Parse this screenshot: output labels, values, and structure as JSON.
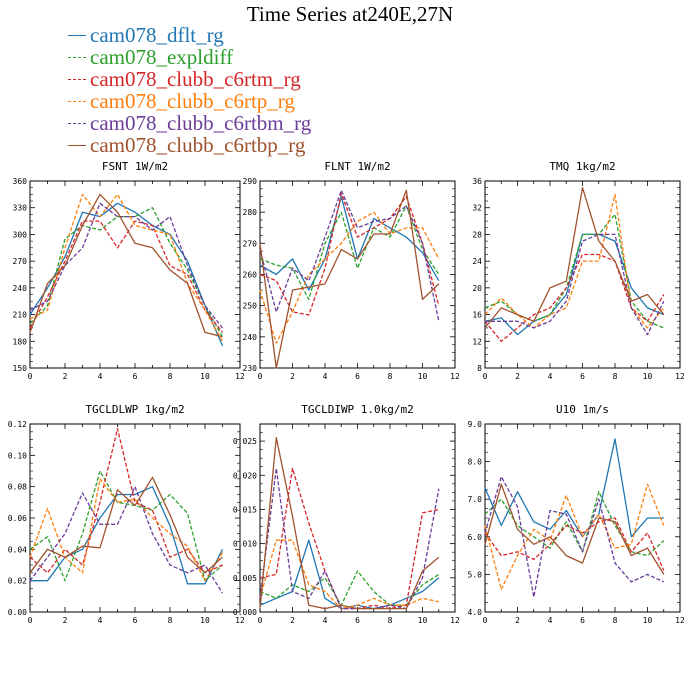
{
  "figure_title": "Time Series at240E,27N",
  "legend": [
    {
      "name": "cam078_dflt_rg",
      "color": "#1f77b4",
      "dash": false
    },
    {
      "name": "cam078_expldiff",
      "color": "#2ca02c",
      "dash": true
    },
    {
      "name": "cam078_clubb_c6rtm_rg",
      "color": "#d62728",
      "dash": true
    },
    {
      "name": "cam078_clubb_c6rtp_rg",
      "color": "#ff7f0e",
      "dash": true
    },
    {
      "name": "cam078_clubb_c6rtbm_rg",
      "color": "#6a3d9a",
      "dash": true
    },
    {
      "name": "cam078_clubb_c6rtbp_rg",
      "color": "#a0522d",
      "dash": false
    }
  ],
  "chart_data": [
    {
      "type": "line",
      "title": "FSNT   1W/m2",
      "x": [
        0,
        1,
        2,
        3,
        4,
        5,
        6,
        7,
        8,
        9,
        10,
        11
      ],
      "xlim": [
        0,
        12
      ],
      "xticks": [
        "0",
        "2",
        "4",
        "6",
        "8",
        "10",
        "12"
      ],
      "ylim": [
        150,
        360
      ],
      "yticks": [
        "150",
        "180",
        "210",
        "240",
        "270",
        "300",
        "330",
        "360"
      ],
      "series": [
        {
          "values": [
            210,
            240,
            275,
            325,
            320,
            335,
            325,
            310,
            300,
            270,
            220,
            175
          ]
        },
        {
          "values": [
            200,
            220,
            295,
            310,
            305,
            320,
            320,
            330,
            290,
            260,
            220,
            185
          ]
        },
        {
          "values": [
            195,
            230,
            270,
            315,
            315,
            285,
            315,
            310,
            265,
            255,
            215,
            190
          ]
        },
        {
          "values": [
            205,
            215,
            285,
            345,
            320,
            345,
            310,
            305,
            300,
            245,
            215,
            180
          ]
        },
        {
          "values": [
            215,
            225,
            265,
            285,
            335,
            320,
            320,
            305,
            320,
            265,
            220,
            195
          ]
        },
        {
          "values": [
            190,
            245,
            265,
            310,
            345,
            325,
            290,
            285,
            260,
            245,
            190,
            185
          ]
        }
      ]
    },
    {
      "type": "line",
      "title": "FLNT   1W/m2",
      "x": [
        0,
        1,
        2,
        3,
        4,
        5,
        6,
        7,
        8,
        9,
        10,
        11
      ],
      "xlim": [
        0,
        12
      ],
      "xticks": [
        "0",
        "2",
        "4",
        "6",
        "8",
        "10",
        "12"
      ],
      "ylim": [
        230,
        290
      ],
      "yticks": [
        "230",
        "240",
        "250",
        "260",
        "270",
        "280",
        "290"
      ],
      "series": [
        {
          "values": [
            263,
            260,
            265,
            255,
            265,
            285,
            265,
            278,
            275,
            272,
            267,
            258
          ]
        },
        {
          "values": [
            265,
            263,
            262,
            252,
            270,
            280,
            262,
            275,
            272,
            282,
            268,
            260
          ]
        },
        {
          "values": [
            260,
            258,
            248,
            247,
            262,
            286,
            272,
            275,
            278,
            285,
            270,
            250
          ]
        },
        {
          "values": [
            255,
            238,
            248,
            260,
            265,
            270,
            277,
            280,
            273,
            275,
            275,
            265
          ]
        },
        {
          "values": [
            268,
            248,
            262,
            258,
            272,
            287,
            275,
            277,
            278,
            282,
            270,
            245
          ]
        },
        {
          "values": [
            270,
            230,
            255,
            256,
            257,
            268,
            265,
            273,
            273,
            287,
            252,
            257
          ]
        }
      ]
    },
    {
      "type": "line",
      "title": "TMQ   1kg/m2",
      "x": [
        0,
        1,
        2,
        3,
        4,
        5,
        6,
        7,
        8,
        9,
        10,
        11
      ],
      "xlim": [
        0,
        12
      ],
      "xticks": [
        "0",
        "2",
        "4",
        "6",
        "8",
        "10",
        "12"
      ],
      "ylim": [
        8,
        36
      ],
      "yticks": [
        "8",
        "12",
        "16",
        "20",
        "24",
        "28",
        "32",
        "36"
      ],
      "series": [
        {
          "values": [
            15,
            15.5,
            13,
            15,
            16,
            19,
            28,
            28,
            27,
            20,
            17,
            16
          ]
        },
        {
          "values": [
            17,
            18,
            16,
            15,
            16,
            20,
            28,
            28,
            31,
            18,
            15,
            14
          ]
        },
        {
          "values": [
            15,
            12,
            14,
            16,
            17,
            20,
            25,
            25,
            24,
            17,
            15,
            19
          ]
        },
        {
          "values": [
            16,
            18.5,
            16,
            14,
            16,
            17,
            24,
            24,
            34,
            17,
            14,
            17
          ]
        },
        {
          "values": [
            15,
            15,
            15,
            14,
            15,
            18,
            27,
            28,
            28,
            17,
            13,
            18
          ]
        },
        {
          "values": [
            14,
            17,
            16,
            15,
            20,
            21,
            35,
            27,
            24,
            18,
            19,
            16
          ]
        }
      ]
    },
    {
      "type": "line",
      "title": "TGCLDLWP   1kg/m2",
      "x": [
        0,
        1,
        2,
        3,
        4,
        5,
        6,
        7,
        8,
        9,
        10,
        11
      ],
      "xlim": [
        0,
        12
      ],
      "xticks": [
        "0",
        "2",
        "4",
        "6",
        "8",
        "10",
        "12"
      ],
      "ylim": [
        0,
        0.12
      ],
      "yticks": [
        "0.00",
        "0.02",
        "0.04",
        "0.06",
        "0.08",
        "0.10",
        "0.12"
      ],
      "series": [
        {
          "values": [
            0.02,
            0.02,
            0.035,
            0.04,
            0.06,
            0.075,
            0.075,
            0.08,
            0.055,
            0.018,
            0.018,
            0.04
          ]
        },
        {
          "values": [
            0.04,
            0.048,
            0.02,
            0.05,
            0.09,
            0.07,
            0.068,
            0.065,
            0.075,
            0.063,
            0.02,
            0.03
          ]
        },
        {
          "values": [
            0.035,
            0.025,
            0.04,
            0.03,
            0.07,
            0.117,
            0.07,
            0.065,
            0.035,
            0.04,
            0.025,
            0.03
          ]
        },
        {
          "values": [
            0.035,
            0.066,
            0.035,
            0.025,
            0.085,
            0.07,
            0.072,
            0.06,
            0.05,
            0.042,
            0.02,
            0.038
          ]
        },
        {
          "values": [
            0.02,
            0.035,
            0.05,
            0.076,
            0.056,
            0.056,
            0.08,
            0.05,
            0.03,
            0.025,
            0.03,
            0.012
          ]
        },
        {
          "values": [
            0.025,
            0.04,
            0.035,
            0.042,
            0.041,
            0.078,
            0.068,
            0.086,
            0.062,
            0.035,
            0.025,
            0.035
          ]
        }
      ]
    },
    {
      "type": "line",
      "title": "TGCLDIWP   1.0kg/m2",
      "x": [
        0,
        1,
        2,
        3,
        4,
        5,
        6,
        7,
        8,
        9,
        10,
        11
      ],
      "xlim": [
        0,
        12
      ],
      "xticks": [
        "0",
        "2",
        "4",
        "6",
        "8",
        "10",
        "12"
      ],
      "ylim": [
        0,
        0.0275
      ],
      "yticks": [
        "0.000",
        "0.005",
        "0.010",
        "0.015",
        "0.020",
        "0.025"
      ],
      "series": [
        {
          "values": [
            0.001,
            0.002,
            0.003,
            0.0105,
            0.002,
            0.0005,
            0.001,
            0.0005,
            0.001,
            0.002,
            0.003,
            0.005
          ]
        },
        {
          "values": [
            0.003,
            0.002,
            0.004,
            0.003,
            0.005,
            0.001,
            0.006,
            0.003,
            0.001,
            0.001,
            0.004,
            0.0055
          ]
        },
        {
          "values": [
            0.005,
            0.0055,
            0.021,
            0.013,
            0.006,
            0.0005,
            0.0005,
            0.001,
            0.0005,
            0.001,
            0.0145,
            0.015
          ]
        },
        {
          "values": [
            0.002,
            0.0105,
            0.0105,
            0.004,
            0.003,
            0.0005,
            0.001,
            0.002,
            0.001,
            0.001,
            0.002,
            0.0015
          ]
        },
        {
          "values": [
            0.002,
            0.021,
            0.003,
            0.002,
            0.006,
            0.0005,
            0.0005,
            0.0005,
            0.001,
            0.0005,
            0.005,
            0.018
          ]
        },
        {
          "values": [
            0.0005,
            0.0255,
            0.014,
            0.001,
            0.0005,
            0.001,
            0.0005,
            0.0005,
            0.0005,
            0.0005,
            0.006,
            0.008
          ]
        }
      ]
    },
    {
      "type": "line",
      "title": "U10   1m/s",
      "x": [
        0,
        1,
        2,
        3,
        4,
        5,
        6,
        7,
        8,
        9,
        10,
        11
      ],
      "xlim": [
        0,
        12
      ],
      "xticks": [
        "0",
        "2",
        "4",
        "6",
        "8",
        "10",
        "12"
      ],
      "ylim": [
        4,
        9
      ],
      "yticks": [
        "4.0",
        "5.0",
        "6.0",
        "7.0",
        "8.0",
        "9.0"
      ],
      "series": [
        {
          "values": [
            7.3,
            6.3,
            7.2,
            6.4,
            6.2,
            6.7,
            6.0,
            6.6,
            8.6,
            6.0,
            6.5,
            6.5
          ]
        },
        {
          "values": [
            6.6,
            7.0,
            6.3,
            6.0,
            5.7,
            6.4,
            5.6,
            7.2,
            6.3,
            5.6,
            5.5,
            5.9
          ]
        },
        {
          "values": [
            6.1,
            5.5,
            5.6,
            5.4,
            5.8,
            6.3,
            6.1,
            6.4,
            6.5,
            5.6,
            6.1,
            5.1
          ]
        },
        {
          "values": [
            6.3,
            4.6,
            5.5,
            6.2,
            5.9,
            7.1,
            6.0,
            6.6,
            5.7,
            5.8,
            7.4,
            6.3
          ]
        },
        {
          "values": [
            6.1,
            7.6,
            6.8,
            4.4,
            6.7,
            6.6,
            5.6,
            7.0,
            5.3,
            4.8,
            5.0,
            4.8
          ]
        },
        {
          "values": [
            5.8,
            7.4,
            6.2,
            5.8,
            6.0,
            5.5,
            5.3,
            6.5,
            6.4,
            5.5,
            5.7,
            5.0
          ]
        }
      ]
    }
  ]
}
